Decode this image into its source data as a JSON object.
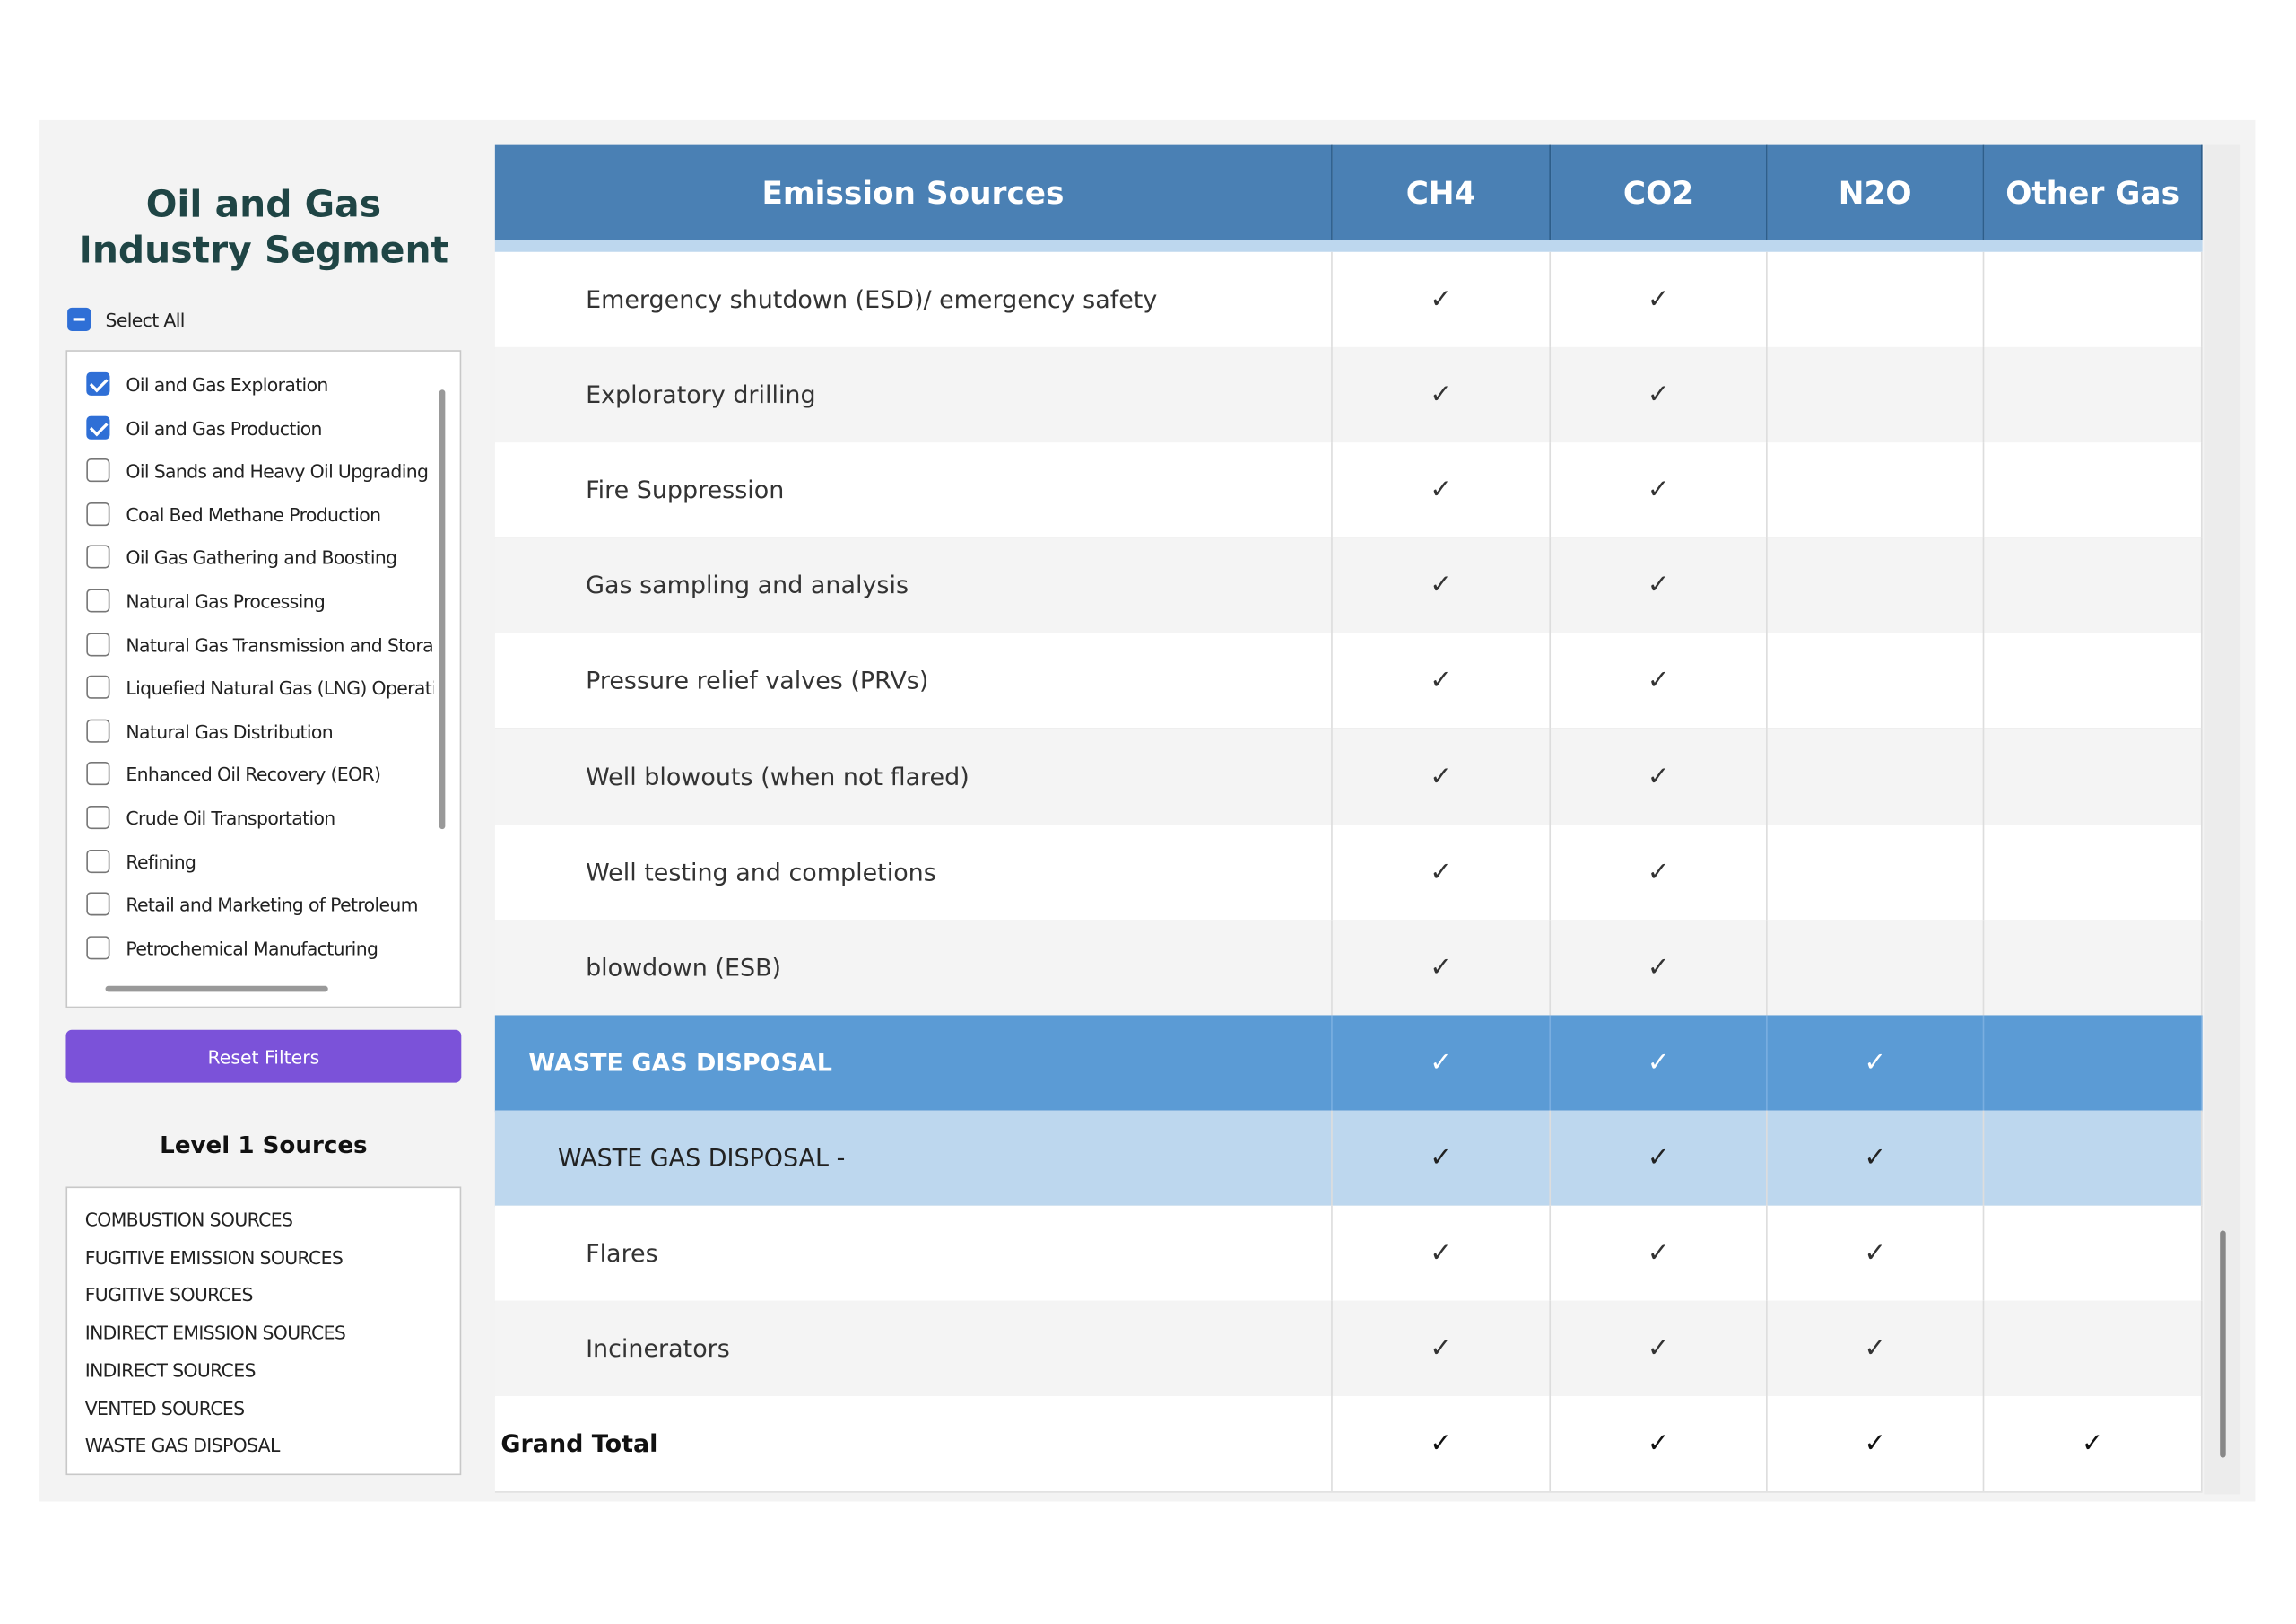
{
  "sidebar": {
    "title_lines": [
      "Oil and Gas",
      "Industry Segment"
    ],
    "select_all": {
      "label": "Select All",
      "state": "partial"
    },
    "filters": [
      {
        "label": "Oil and Gas Exploration",
        "checked": true
      },
      {
        "label": "Oil and Gas Production",
        "checked": true
      },
      {
        "label": "Oil Sands and Heavy Oil Upgrading",
        "checked": false
      },
      {
        "label": "Coal Bed Methane Production",
        "checked": false
      },
      {
        "label": "Oil  Gas Gathering and Boosting",
        "checked": false
      },
      {
        "label": "Natural Gas Processing",
        "checked": false
      },
      {
        "label": "Natural Gas Transmission and Storage",
        "checked": false
      },
      {
        "label": "Liquefied Natural Gas (LNG) Operations",
        "checked": false
      },
      {
        "label": "Natural Gas Distribution",
        "checked": false
      },
      {
        "label": "Enhanced Oil Recovery (EOR)",
        "checked": false
      },
      {
        "label": "Crude Oil Transportation",
        "checked": false
      },
      {
        "label": "Refining",
        "checked": false
      },
      {
        "label": "Retail and Marketing of Petroleum",
        "checked": false
      },
      {
        "label": "Petrochemical Manufacturing",
        "checked": false
      }
    ],
    "reset_button": "Reset Filters",
    "level1": {
      "title": "Level 1 Sources",
      "items": [
        "COMBUSTION SOURCES",
        "FUGITIVE EMISSION SOURCES",
        "FUGITIVE SOURCES",
        "INDIRECT EMISSION SOURCES",
        "INDIRECT SOURCES",
        "VENTED SOURCES",
        "WASTE GAS DISPOSAL"
      ]
    }
  },
  "table": {
    "headers": [
      "Emission Sources",
      "CH4",
      "CO2",
      "N2O",
      "Other Gas"
    ],
    "rows": [
      {
        "kind": "detail",
        "cells": [
          "Emergency shutdown (ESD)/ emergency safety",
          "✓",
          "✓",
          null,
          null
        ]
      },
      {
        "kind": "detail",
        "cells": [
          "Exploratory drilling",
          "✓",
          "✓",
          null,
          null
        ]
      },
      {
        "kind": "detail",
        "cells": [
          "Fire Suppression",
          "✓",
          "✓",
          null,
          null
        ]
      },
      {
        "kind": "detail",
        "cells": [
          "Gas sampling and analysis",
          "✓",
          "✓",
          null,
          null
        ]
      },
      {
        "kind": "detail",
        "cells": [
          "Pressure relief valves (PRVs)",
          "✓",
          "✓",
          null,
          null
        ]
      },
      {
        "kind": "detail",
        "cells": [
          "Well blowouts (when not flared)",
          "✓",
          "✓",
          null,
          null
        ]
      },
      {
        "kind": "detail",
        "cells": [
          "Well testing and completions",
          "✓",
          "✓",
          null,
          null
        ]
      },
      {
        "kind": "detail",
        "cells": [
          "blowdown (ESB)",
          "✓",
          "✓",
          null,
          null
        ]
      },
      {
        "kind": "group",
        "cells": [
          "WASTE GAS DISPOSAL",
          "✓",
          "✓",
          "✓",
          null
        ]
      },
      {
        "kind": "subgroup",
        "cells": [
          "WASTE GAS DISPOSAL -",
          "✓",
          "✓",
          "✓",
          null
        ]
      },
      {
        "kind": "detail",
        "cells": [
          "Flares",
          "✓",
          "✓",
          "✓",
          null
        ]
      },
      {
        "kind": "detail",
        "cells": [
          "Incinerators",
          "✓",
          "✓",
          "✓",
          null
        ]
      },
      {
        "kind": "total",
        "cells": [
          "Grand Total",
          "✓",
          "✓",
          "✓",
          "✓"
        ]
      }
    ]
  }
}
